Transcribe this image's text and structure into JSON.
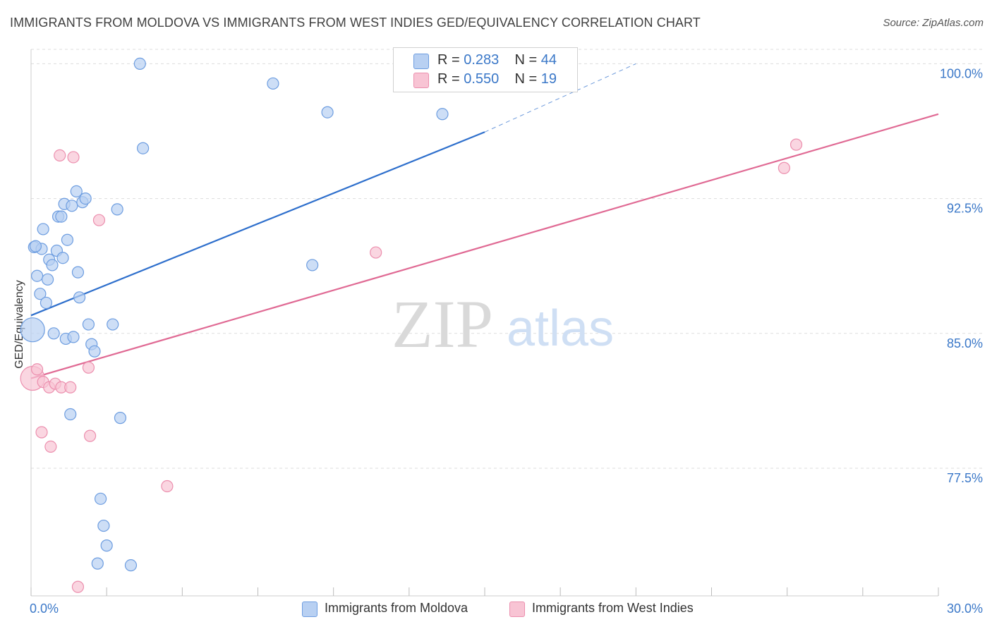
{
  "title": "IMMIGRANTS FROM MOLDOVA VS IMMIGRANTS FROM WEST INDIES GED/EQUIVALENCY CORRELATION CHART",
  "source": "Source: ZipAtlas.com",
  "watermark": {
    "zip": "ZIP",
    "atlas": "atlas"
  },
  "colors": {
    "moldova_fill": "#b8d0f2",
    "moldova_stroke": "#6d9de0",
    "moldova_line": "#2e6fcc",
    "westindies_fill": "#f8c4d4",
    "westindies_stroke": "#ec8fae",
    "westindies_line": "#e06a94",
    "tick_label": "#3b78c8",
    "grid": "#dddddd"
  },
  "legend": {
    "moldova": {
      "r_label": "R = ",
      "r_value": "0.283",
      "n_label": "N = ",
      "n_value": "44"
    },
    "westindies": {
      "r_label": "R = ",
      "r_value": "0.550",
      "n_label": "N = ",
      "n_value": "19"
    }
  },
  "chart_data": {
    "type": "scatter",
    "title": "IMMIGRANTS FROM MOLDOVA VS IMMIGRANTS FROM WEST INDIES GED/EQUIVALENCY CORRELATION CHART",
    "xlabel": "",
    "ylabel": "GED/Equivalency",
    "xlim": [
      0,
      30
    ],
    "ylim": [
      70.4,
      100.8
    ],
    "x_tick_labels": [
      {
        "value": 0,
        "label": "0.0%"
      },
      {
        "value": 30,
        "label": "30.0%"
      }
    ],
    "y_tick_labels": [
      {
        "value": 100,
        "label": "100.0%"
      },
      {
        "value": 92.5,
        "label": "92.5%"
      },
      {
        "value": 85,
        "label": "85.0%"
      },
      {
        "value": 77.5,
        "label": "77.5%"
      }
    ],
    "grid": true,
    "legend_position": "top-center",
    "series": [
      {
        "name": "Immigrants from Moldova",
        "points": [
          {
            "x": 0.05,
            "y": 85.2,
            "large": true
          },
          {
            "x": 0.1,
            "y": 89.8
          },
          {
            "x": 0.2,
            "y": 88.2
          },
          {
            "x": 0.3,
            "y": 87.2
          },
          {
            "x": 0.35,
            "y": 89.7
          },
          {
            "x": 0.4,
            "y": 90.8
          },
          {
            "x": 0.5,
            "y": 86.7
          },
          {
            "x": 0.55,
            "y": 88.0
          },
          {
            "x": 0.6,
            "y": 89.1
          },
          {
            "x": 0.7,
            "y": 88.8
          },
          {
            "x": 0.75,
            "y": 85.0
          },
          {
            "x": 0.85,
            "y": 89.6
          },
          {
            "x": 0.9,
            "y": 91.5
          },
          {
            "x": 1.0,
            "y": 91.5
          },
          {
            "x": 1.05,
            "y": 89.2
          },
          {
            "x": 1.1,
            "y": 92.2
          },
          {
            "x": 1.2,
            "y": 90.2
          },
          {
            "x": 1.15,
            "y": 84.7
          },
          {
            "x": 1.3,
            "y": 80.5
          },
          {
            "x": 1.35,
            "y": 92.1
          },
          {
            "x": 1.4,
            "y": 84.8
          },
          {
            "x": 1.5,
            "y": 92.9
          },
          {
            "x": 1.55,
            "y": 88.4
          },
          {
            "x": 1.6,
            "y": 87.0
          },
          {
            "x": 1.7,
            "y": 92.3
          },
          {
            "x": 1.8,
            "y": 92.5
          },
          {
            "x": 1.9,
            "y": 85.5
          },
          {
            "x": 2.0,
            "y": 84.4
          },
          {
            "x": 2.1,
            "y": 84.0
          },
          {
            "x": 2.2,
            "y": 72.2
          },
          {
            "x": 2.3,
            "y": 75.8
          },
          {
            "x": 2.4,
            "y": 74.3
          },
          {
            "x": 2.5,
            "y": 73.2
          },
          {
            "x": 2.7,
            "y": 85.5
          },
          {
            "x": 2.85,
            "y": 91.9
          },
          {
            "x": 2.95,
            "y": 80.3
          },
          {
            "x": 3.3,
            "y": 72.1
          },
          {
            "x": 3.6,
            "y": 100.0
          },
          {
            "x": 3.7,
            "y": 95.3
          },
          {
            "x": 8.0,
            "y": 98.9
          },
          {
            "x": 9.3,
            "y": 88.8
          },
          {
            "x": 9.8,
            "y": 97.3
          },
          {
            "x": 13.6,
            "y": 97.2
          },
          {
            "x": 0.15,
            "y": 89.85
          }
        ],
        "trend": {
          "x0": 0,
          "y0": 86.0,
          "x1": 15.0,
          "y1": 96.2,
          "dashed_to_x": 20.0,
          "dashed_to_y": 100.0
        }
      },
      {
        "name": "Immigrants from West Indies",
        "points": [
          {
            "x": 0.05,
            "y": 82.5,
            "large": true
          },
          {
            "x": 0.2,
            "y": 83.0
          },
          {
            "x": 0.35,
            "y": 79.5
          },
          {
            "x": 0.4,
            "y": 82.3
          },
          {
            "x": 0.6,
            "y": 82.0
          },
          {
            "x": 0.65,
            "y": 78.7
          },
          {
            "x": 0.8,
            "y": 82.2
          },
          {
            "x": 0.95,
            "y": 94.9
          },
          {
            "x": 1.0,
            "y": 82.0
          },
          {
            "x": 1.3,
            "y": 82.0
          },
          {
            "x": 1.4,
            "y": 94.8
          },
          {
            "x": 1.55,
            "y": 70.9
          },
          {
            "x": 1.9,
            "y": 83.1
          },
          {
            "x": 1.95,
            "y": 79.3
          },
          {
            "x": 2.25,
            "y": 91.3
          },
          {
            "x": 4.5,
            "y": 76.5
          },
          {
            "x": 11.4,
            "y": 89.5
          },
          {
            "x": 24.9,
            "y": 94.2
          },
          {
            "x": 25.3,
            "y": 95.5
          }
        ],
        "trend": {
          "x0": 0,
          "y0": 82.5,
          "x1": 30.0,
          "y1": 97.2
        }
      }
    ]
  },
  "bottom_legend": {
    "moldova": "Immigrants from Moldova",
    "westindies": "Immigrants from West Indies"
  }
}
